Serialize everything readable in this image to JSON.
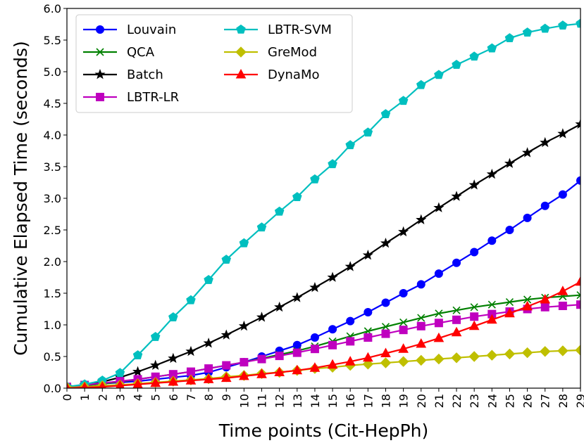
{
  "chart_data": {
    "type": "line",
    "title": "",
    "xlabel": "Time points (Cit-HepPh)",
    "ylabel": "Cumulative Elapsed Time (seconds)",
    "xlim": [
      0,
      29
    ],
    "ylim": [
      0.0,
      6.0
    ],
    "grid": false,
    "legend_position": "upper-left",
    "x": [
      0,
      1,
      2,
      3,
      4,
      5,
      6,
      7,
      8,
      9,
      10,
      11,
      12,
      13,
      14,
      15,
      16,
      17,
      18,
      19,
      20,
      21,
      22,
      23,
      24,
      25,
      26,
      27,
      28,
      29
    ],
    "x_tick_labels": [
      "0",
      "1",
      "2",
      "3",
      "4",
      "5",
      "6",
      "7",
      "8",
      "9",
      "10",
      "11",
      "12",
      "13",
      "14",
      "15",
      "16",
      "17",
      "18",
      "19",
      "20",
      "21",
      "22",
      "23",
      "24",
      "25",
      "26",
      "27",
      "28",
      "29"
    ],
    "y_ticks": [
      0.0,
      0.5,
      1.0,
      1.5,
      2.0,
      2.5,
      3.0,
      3.5,
      4.0,
      4.5,
      5.0,
      5.5,
      6.0
    ],
    "y_tick_labels": [
      "0.0",
      "0.5",
      "1.0",
      "1.5",
      "2.0",
      "2.5",
      "3.0",
      "3.5",
      "4.0",
      "4.5",
      "5.0",
      "5.5",
      "6.0"
    ],
    "series": [
      {
        "name": "Louvain",
        "color": "#0000ff",
        "marker": "circle",
        "values": [
          0.02,
          0.04,
          0.07,
          0.09,
          0.11,
          0.14,
          0.17,
          0.2,
          0.25,
          0.33,
          0.41,
          0.5,
          0.59,
          0.68,
          0.8,
          0.93,
          1.06,
          1.2,
          1.35,
          1.5,
          1.64,
          1.81,
          1.98,
          2.15,
          2.33,
          2.5,
          2.69,
          2.88,
          3.06,
          3.28
        ]
      },
      {
        "name": "QCA",
        "color": "#008000",
        "marker": "x",
        "values": [
          0.02,
          0.04,
          0.07,
          0.1,
          0.14,
          0.18,
          0.22,
          0.26,
          0.31,
          0.36,
          0.41,
          0.47,
          0.53,
          0.59,
          0.66,
          0.74,
          0.82,
          0.9,
          0.97,
          1.04,
          1.11,
          1.18,
          1.23,
          1.28,
          1.32,
          1.36,
          1.4,
          1.43,
          1.45,
          1.47
        ]
      },
      {
        "name": "Batch",
        "color": "#000000",
        "marker": "star",
        "values": [
          0.02,
          0.05,
          0.1,
          0.17,
          0.26,
          0.36,
          0.47,
          0.58,
          0.71,
          0.84,
          0.98,
          1.12,
          1.28,
          1.43,
          1.59,
          1.75,
          1.92,
          2.1,
          2.29,
          2.47,
          2.66,
          2.85,
          3.03,
          3.21,
          3.38,
          3.55,
          3.72,
          3.88,
          4.02,
          4.17
        ]
      },
      {
        "name": "LBTR-LR",
        "color": "#bf00bf",
        "marker": "square",
        "values": [
          0.02,
          0.05,
          0.08,
          0.11,
          0.14,
          0.18,
          0.22,
          0.26,
          0.31,
          0.36,
          0.41,
          0.46,
          0.51,
          0.56,
          0.62,
          0.68,
          0.74,
          0.8,
          0.86,
          0.92,
          0.98,
          1.03,
          1.08,
          1.13,
          1.17,
          1.21,
          1.25,
          1.28,
          1.3,
          1.32
        ]
      },
      {
        "name": "LBTR-SVM",
        "color": "#00bfbf",
        "marker": "pentagon",
        "values": [
          0.02,
          0.06,
          0.12,
          0.24,
          0.52,
          0.81,
          1.12,
          1.39,
          1.71,
          2.03,
          2.29,
          2.54,
          2.79,
          3.02,
          3.3,
          3.54,
          3.84,
          4.04,
          4.33,
          4.54,
          4.79,
          4.95,
          5.11,
          5.24,
          5.37,
          5.53,
          5.62,
          5.68,
          5.73,
          5.76
        ]
      },
      {
        "name": "GreMod",
        "color": "#bfbf00",
        "marker": "diamond",
        "values": [
          0.01,
          0.02,
          0.04,
          0.05,
          0.07,
          0.09,
          0.11,
          0.13,
          0.15,
          0.18,
          0.2,
          0.23,
          0.25,
          0.28,
          0.31,
          0.33,
          0.36,
          0.38,
          0.4,
          0.42,
          0.44,
          0.46,
          0.48,
          0.5,
          0.52,
          0.54,
          0.56,
          0.58,
          0.59,
          0.6
        ]
      },
      {
        "name": "DynaMo",
        "color": "#ff0000",
        "marker": "triangle",
        "values": [
          0.0,
          0.01,
          0.02,
          0.04,
          0.06,
          0.08,
          0.1,
          0.12,
          0.14,
          0.16,
          0.19,
          0.22,
          0.25,
          0.28,
          0.32,
          0.37,
          0.42,
          0.48,
          0.55,
          0.62,
          0.7,
          0.79,
          0.88,
          0.98,
          1.08,
          1.18,
          1.29,
          1.4,
          1.53,
          1.68
        ]
      }
    ]
  }
}
